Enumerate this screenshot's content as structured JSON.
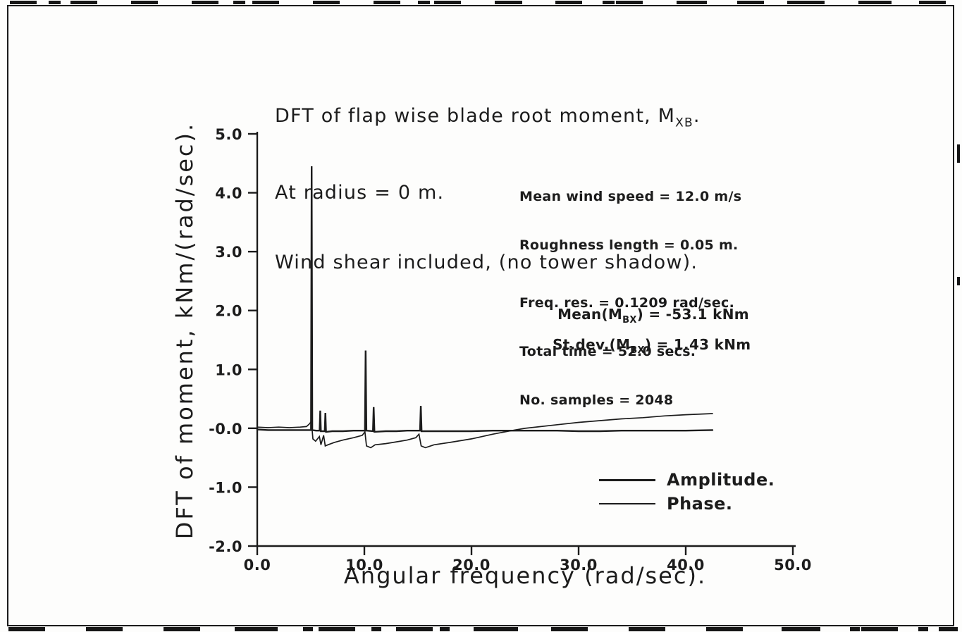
{
  "page": {
    "ink_color": "#1c1c1c",
    "background_color": "#fdfdfc"
  },
  "header": {
    "line1_pre": "DFT of flap wise blade root moment, M",
    "line1_sub": "XB",
    "line1_post": ".",
    "line2": "At radius = 0 m.",
    "line3": "Wind shear included, (no tower shadow)."
  },
  "chart_data": {
    "type": "line",
    "title": "DFT of flap wise blade root moment, M_XB. At radius = 0 m. Wind shear included, (no tower shadow).",
    "xlabel": "Angular frequency (rad/sec).",
    "ylabel": "DFT of moment, kNm/(rad/sec).",
    "xlim": [
      0,
      50
    ],
    "ylim": [
      -2,
      5
    ],
    "grid": false,
    "legend_position": "lower-right-inside",
    "xticks": [
      {
        "v": 0,
        "label": "0.0"
      },
      {
        "v": 10,
        "label": "10.0"
      },
      {
        "v": 20,
        "label": "20.0"
      },
      {
        "v": 30,
        "label": "30.0"
      },
      {
        "v": 40,
        "label": "40.0"
      },
      {
        "v": 50,
        "label": "50.0"
      }
    ],
    "yticks": [
      {
        "v": 5,
        "label": "5.0"
      },
      {
        "v": 4,
        "label": "4.0"
      },
      {
        "v": 3,
        "label": "3.0"
      },
      {
        "v": 2,
        "label": "2.0"
      },
      {
        "v": 1,
        "label": "1.0"
      },
      {
        "v": 0,
        "label": "-0.0"
      },
      {
        "v": -1,
        "label": "-1.0"
      },
      {
        "v": -2,
        "label": "-2.0"
      }
    ],
    "annotations": {
      "info": [
        "Mean wind speed = 12.0 m/s",
        "Roughness length = 0.05 m.",
        "Freq. res. = 0.1209 rad/sec.",
        "Total time = 52.0 secs.",
        "No. samples = 2048"
      ],
      "mean": {
        "pre": "Mean(M",
        "sub": "BX",
        "post": ") = -53.1 kNm"
      },
      "stdev": {
        "pre": "St.dev.(M",
        "sub": "BX",
        "post": ") = 1.43 kNm"
      }
    },
    "series": [
      {
        "name": "Amplitude.",
        "points": [
          [
            0,
            -0.02
          ],
          [
            1,
            -0.03
          ],
          [
            2,
            -0.03
          ],
          [
            3,
            -0.03
          ],
          [
            4,
            -0.03
          ],
          [
            4.7,
            -0.03
          ],
          [
            5.02,
            -0.03
          ],
          [
            5.08,
            4.45
          ],
          [
            5.14,
            -0.03
          ],
          [
            5.5,
            -0.04
          ],
          [
            5.82,
            -0.04
          ],
          [
            5.88,
            0.3
          ],
          [
            5.94,
            -0.05
          ],
          [
            6.3,
            -0.05
          ],
          [
            6.36,
            0.26
          ],
          [
            6.42,
            -0.06
          ],
          [
            7,
            -0.05
          ],
          [
            8,
            -0.05
          ],
          [
            9,
            -0.04
          ],
          [
            10.05,
            -0.04
          ],
          [
            10.12,
            1.32
          ],
          [
            10.19,
            -0.04
          ],
          [
            10.8,
            -0.05
          ],
          [
            10.87,
            0.36
          ],
          [
            10.94,
            -0.06
          ],
          [
            12,
            -0.05
          ],
          [
            13,
            -0.05
          ],
          [
            14,
            -0.04
          ],
          [
            15.2,
            -0.04
          ],
          [
            15.27,
            0.38
          ],
          [
            15.34,
            -0.05
          ],
          [
            16,
            -0.05
          ],
          [
            17,
            -0.05
          ],
          [
            18,
            -0.05
          ],
          [
            20,
            -0.05
          ],
          [
            22,
            -0.04
          ],
          [
            24,
            -0.04
          ],
          [
            26,
            -0.04
          ],
          [
            28,
            -0.04
          ],
          [
            30,
            -0.05
          ],
          [
            32,
            -0.05
          ],
          [
            34,
            -0.04
          ],
          [
            36,
            -0.04
          ],
          [
            38,
            -0.04
          ],
          [
            40,
            -0.04
          ],
          [
            42.5,
            -0.03
          ]
        ]
      },
      {
        "name": "Phase.",
        "points": [
          [
            0,
            0.02
          ],
          [
            1,
            0.01
          ],
          [
            2,
            0.02
          ],
          [
            3,
            0.01
          ],
          [
            4,
            0.02
          ],
          [
            4.6,
            0.03
          ],
          [
            4.9,
            0.08
          ],
          [
            5.05,
            0.12
          ],
          [
            5.2,
            -0.18
          ],
          [
            5.45,
            -0.22
          ],
          [
            5.8,
            -0.14
          ],
          [
            5.95,
            -0.28
          ],
          [
            6.2,
            -0.12
          ],
          [
            6.35,
            -0.3
          ],
          [
            6.6,
            -0.28
          ],
          [
            7.2,
            -0.24
          ],
          [
            8,
            -0.2
          ],
          [
            9,
            -0.16
          ],
          [
            9.8,
            -0.12
          ],
          [
            10.05,
            -0.06
          ],
          [
            10.2,
            -0.3
          ],
          [
            10.6,
            -0.33
          ],
          [
            11,
            -0.28
          ],
          [
            12,
            -0.26
          ],
          [
            13,
            -0.23
          ],
          [
            14,
            -0.2
          ],
          [
            14.8,
            -0.16
          ],
          [
            15.1,
            -0.1
          ],
          [
            15.3,
            -0.3
          ],
          [
            15.7,
            -0.33
          ],
          [
            16.5,
            -0.28
          ],
          [
            18,
            -0.24
          ],
          [
            20,
            -0.18
          ],
          [
            22,
            -0.1
          ],
          [
            24,
            -0.03
          ],
          [
            25,
            0.0
          ],
          [
            26,
            0.02
          ],
          [
            28,
            0.06
          ],
          [
            30,
            0.1
          ],
          [
            32,
            0.13
          ],
          [
            34,
            0.16
          ],
          [
            36,
            0.18
          ],
          [
            38,
            0.21
          ],
          [
            40,
            0.23
          ],
          [
            42.5,
            0.25
          ]
        ]
      }
    ]
  }
}
